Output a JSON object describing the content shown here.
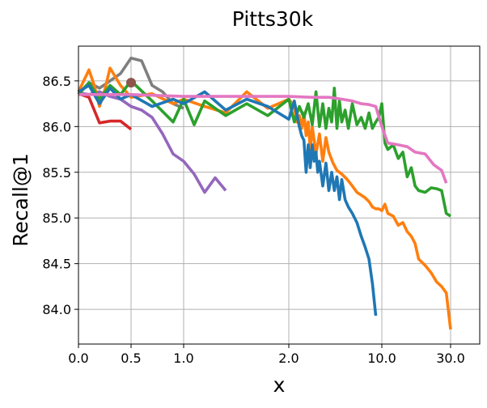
{
  "chart_data": {
    "type": "line",
    "title": "Pitts30k",
    "xlabel": "x",
    "ylabel": "Recall@1",
    "x_tick_labels": [
      "0.0",
      "0.5",
      "1.0",
      "2.0",
      "10.0",
      "30.0"
    ],
    "x_tick_positions": [
      0,
      0.5,
      1,
      2,
      10,
      30
    ],
    "y_ticks": [
      84.0,
      84.5,
      85.0,
      85.5,
      86.0,
      86.5
    ],
    "y_tick_labels": [
      "84.0",
      "84.5",
      "85.0",
      "85.5",
      "86.0",
      "86.5"
    ],
    "ylim": [
      83.62,
      86.88
    ],
    "grid": true,
    "reference_point": {
      "x": 0.5,
      "y": 86.48,
      "color": "#8c564b"
    },
    "series": [
      {
        "name": "series-red",
        "color": "#d62728",
        "x": [
          0.0,
          0.1,
          0.2,
          0.3,
          0.4,
          0.5
        ],
        "y": [
          86.36,
          86.32,
          86.04,
          86.06,
          86.06,
          85.97
        ]
      },
      {
        "name": "series-purple",
        "color": "#9467bd",
        "x": [
          0.0,
          0.1,
          0.2,
          0.3,
          0.4,
          0.5,
          0.6,
          0.7,
          0.8,
          0.9,
          1.0,
          1.1,
          1.2,
          1.3,
          1.4
        ],
        "y": [
          86.37,
          86.35,
          86.38,
          86.33,
          86.3,
          86.22,
          86.18,
          86.1,
          85.92,
          85.7,
          85.62,
          85.48,
          85.28,
          85.44,
          85.3
        ]
      },
      {
        "name": "series-gray",
        "color": "#7f7f7f",
        "x": [
          0.0,
          0.1,
          0.2,
          0.3,
          0.4,
          0.5,
          0.6,
          0.7,
          0.8,
          0.9,
          1.0
        ],
        "y": [
          86.36,
          86.48,
          86.42,
          86.5,
          86.58,
          86.75,
          86.72,
          86.45,
          86.38,
          86.25,
          86.2
        ]
      },
      {
        "name": "series-orange",
        "color": "#ff7f0e",
        "x": [
          0.0,
          0.1,
          0.15,
          0.2,
          0.25,
          0.3,
          0.4,
          0.5,
          0.7,
          0.9,
          1.0,
          1.2,
          1.4,
          1.6,
          1.8,
          2.0,
          2.2,
          2.3,
          2.4,
          2.5,
          2.6,
          2.7,
          2.8,
          2.9,
          3.0,
          3.2,
          3.4,
          3.6,
          3.8,
          4.0,
          4.3,
          4.6,
          5.0,
          5.5,
          6.0,
          6.5,
          7.0,
          7.5,
          8.0,
          8.5,
          9.0,
          9.5,
          10.0,
          10.5,
          11.0,
          12.0,
          13.0,
          14.0,
          15.0,
          16.0,
          17.0,
          18.0,
          20.0,
          22.0,
          24.0,
          26.0,
          28.0,
          30.0
        ],
        "y": [
          86.38,
          86.62,
          86.45,
          86.22,
          86.4,
          86.64,
          86.45,
          86.32,
          86.36,
          86.25,
          86.3,
          86.22,
          86.15,
          86.38,
          86.2,
          86.3,
          86.22,
          86.05,
          86.12,
          85.98,
          86.15,
          85.9,
          86.05,
          85.75,
          86.0,
          85.7,
          85.92,
          85.62,
          85.88,
          85.72,
          85.6,
          85.52,
          85.48,
          85.42,
          85.35,
          85.28,
          85.25,
          85.22,
          85.18,
          85.12,
          85.1,
          85.1,
          85.08,
          85.15,
          85.05,
          85.02,
          84.92,
          84.95,
          84.85,
          84.8,
          84.72,
          84.55,
          84.48,
          84.4,
          84.3,
          84.25,
          84.18,
          83.78
        ]
      },
      {
        "name": "series-green",
        "color": "#2ca02c",
        "x": [
          0.0,
          0.1,
          0.2,
          0.3,
          0.4,
          0.5,
          0.7,
          0.9,
          1.0,
          1.1,
          1.2,
          1.4,
          1.6,
          1.8,
          2.0,
          2.2,
          2.4,
          2.6,
          2.8,
          3.0,
          3.2,
          3.4,
          3.6,
          3.8,
          4.0,
          4.2,
          4.4,
          4.6,
          4.8,
          5.0,
          5.3,
          5.6,
          6.0,
          6.5,
          7.0,
          7.5,
          8.0,
          8.5,
          9.0,
          9.5,
          10.0,
          10.5,
          11.0,
          12.0,
          13.0,
          14.0,
          15.0,
          16.0,
          17.0,
          18.0,
          20.0,
          22.0,
          24.0,
          26.0,
          28.0,
          30.0
        ],
        "y": [
          86.35,
          86.48,
          86.3,
          86.45,
          86.35,
          86.5,
          86.28,
          86.05,
          86.3,
          86.02,
          86.28,
          86.12,
          86.25,
          86.12,
          86.3,
          86.05,
          86.22,
          86.1,
          86.25,
          86.02,
          86.38,
          86.0,
          86.25,
          85.98,
          86.2,
          86.05,
          86.42,
          85.98,
          86.28,
          86.05,
          86.18,
          85.98,
          86.25,
          86.02,
          86.1,
          85.98,
          86.15,
          85.98,
          86.05,
          86.1,
          86.25,
          85.82,
          85.75,
          85.8,
          85.65,
          85.72,
          85.45,
          85.55,
          85.35,
          85.3,
          85.28,
          85.33,
          85.32,
          85.3,
          85.05,
          85.02
        ]
      },
      {
        "name": "series-blue",
        "color": "#1f77b4",
        "x": [
          0.0,
          0.1,
          0.2,
          0.3,
          0.4,
          0.5,
          0.7,
          0.9,
          1.0,
          1.2,
          1.4,
          1.6,
          1.8,
          2.0,
          2.2,
          2.4,
          2.5,
          2.6,
          2.7,
          2.8,
          2.9,
          3.0,
          3.1,
          3.2,
          3.3,
          3.4,
          3.6,
          3.8,
          4.0,
          4.2,
          4.4,
          4.6,
          4.8,
          5.0,
          5.3,
          5.6,
          6.0,
          6.5,
          7.0,
          7.5,
          8.0,
          8.5,
          9.0
        ],
        "y": [
          86.38,
          86.45,
          86.25,
          86.42,
          86.3,
          86.35,
          86.22,
          86.3,
          86.25,
          86.38,
          86.18,
          86.3,
          86.22,
          86.08,
          86.28,
          86.0,
          85.9,
          85.85,
          85.5,
          85.8,
          85.55,
          85.8,
          85.62,
          85.72,
          85.5,
          85.62,
          85.35,
          85.6,
          85.3,
          85.5,
          85.3,
          85.45,
          85.2,
          85.42,
          85.2,
          85.12,
          85.05,
          84.95,
          84.8,
          84.68,
          84.55,
          84.28,
          83.93
        ]
      },
      {
        "name": "series-pink",
        "color": "#e377c2",
        "x": [
          0.0,
          0.5,
          1.0,
          2.0,
          3.0,
          4.0,
          5.0,
          6.0,
          7.0,
          8.0,
          9.0,
          10.0,
          11.0,
          13.0,
          15.0,
          17.0,
          20.0,
          23.0,
          26.0,
          28.0
        ],
        "y": [
          86.35,
          86.35,
          86.33,
          86.33,
          86.32,
          86.32,
          86.3,
          86.28,
          86.25,
          86.24,
          86.22,
          86.0,
          85.82,
          85.8,
          85.78,
          85.72,
          85.7,
          85.58,
          85.52,
          85.38
        ]
      }
    ]
  }
}
